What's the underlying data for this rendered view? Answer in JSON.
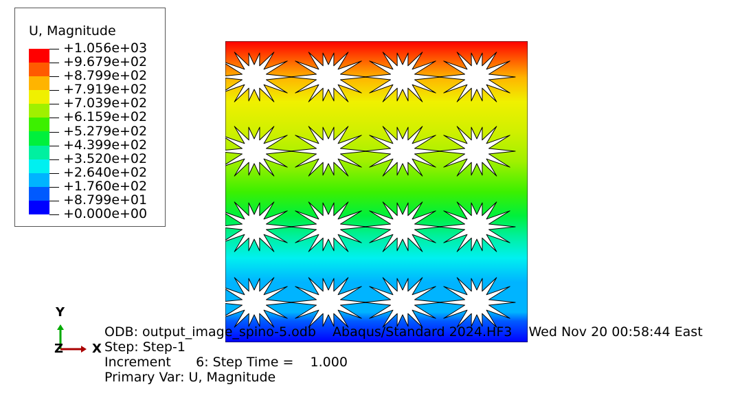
{
  "legend": {
    "title": "U, Magnitude",
    "levels": [
      "+1.056e+03",
      "+9.679e+02",
      "+8.799e+02",
      "+7.919e+02",
      "+7.039e+02",
      "+6.159e+02",
      "+5.279e+02",
      "+4.399e+02",
      "+3.520e+02",
      "+2.640e+02",
      "+1.760e+02",
      "+8.799e+01",
      "+0.000e+00"
    ],
    "colors": [
      "#ff0000",
      "#ff5a00",
      "#ffb400",
      "#f0f000",
      "#a0f000",
      "#3cf000",
      "#00f03c",
      "#00f0a0",
      "#00f0f0",
      "#00b4ff",
      "#005aff",
      "#0000ff"
    ]
  },
  "triad": {
    "y_label": "Y",
    "z_label": "Z",
    "x_label": "X",
    "y_color": "#00aa00",
    "x_color": "#aa0000"
  },
  "info": {
    "odb_line": "ODB: output_image_spino-5.odb    Abaqus/Standard 2024.HF3    Wed Nov 20 00:58:44 East",
    "step_line": "Step: Step-1",
    "increment_line": "Increment      6: Step Time =    1.000",
    "primary_line": "Primary Var: U, Magnitude"
  }
}
